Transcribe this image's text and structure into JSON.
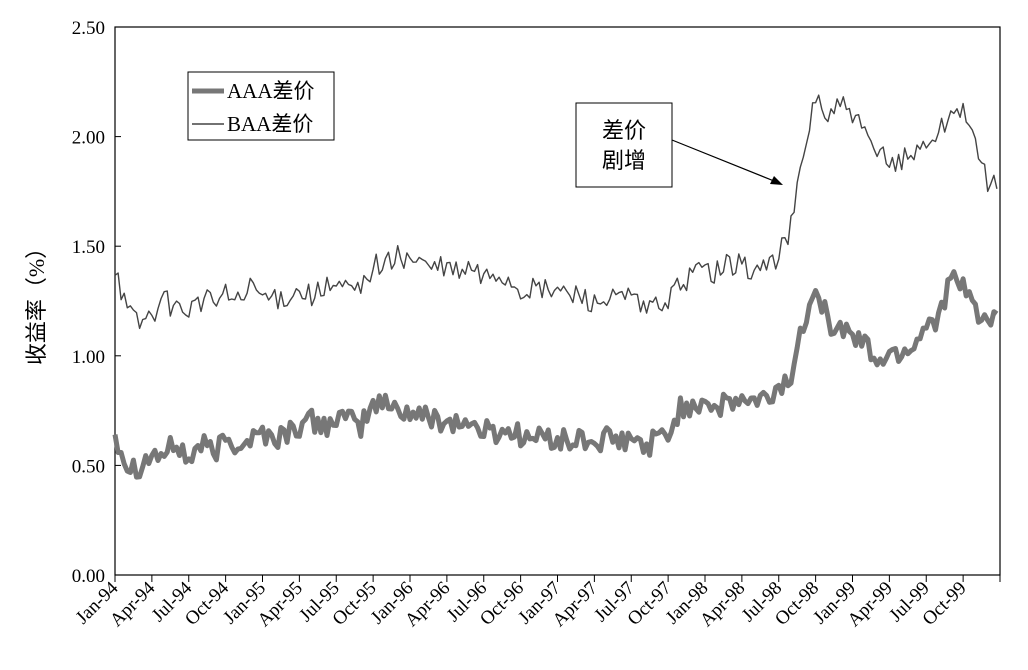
{
  "chart_data": {
    "type": "line",
    "title": "",
    "xlabel": "",
    "ylabel": "收益率（%）",
    "ylim": [
      0,
      2.5
    ],
    "yticks": [
      "0.00",
      "0.50",
      "1.00",
      "1.50",
      "2.00",
      "2.50"
    ],
    "x_tick_labels": [
      "Jan-94",
      "Apr-94",
      "Jul-94",
      "Oct-94",
      "Jan-95",
      "Apr-95",
      "Jul-95",
      "Oct-95",
      "Jan-96",
      "Apr-96",
      "Jul-96",
      "Oct-96",
      "Jan-97",
      "Apr-97",
      "Jul-97",
      "Oct-97",
      "Jan-98",
      "Apr-98",
      "Jul-98",
      "Oct-98",
      "Jan-99",
      "Apr-99",
      "Jul-99",
      "Oct-99"
    ],
    "grid": false,
    "legend": {
      "placement": "top-left"
    },
    "series": [
      {
        "name": "AAA差价",
        "style": "thick",
        "color": "#777777",
        "x": [
          "Jan-94",
          "Feb-94",
          "Mar-94",
          "Apr-94",
          "May-94",
          "Jun-94",
          "Jul-94",
          "Aug-94",
          "Sep-94",
          "Oct-94",
          "Nov-94",
          "Dec-94",
          "Jan-95",
          "Feb-95",
          "Mar-95",
          "Apr-95",
          "May-95",
          "Jun-95",
          "Jul-95",
          "Aug-95",
          "Sep-95",
          "Oct-95",
          "Nov-95",
          "Dec-95",
          "Jan-96",
          "Feb-96",
          "Mar-96",
          "Apr-96",
          "May-96",
          "Jun-96",
          "Jul-96",
          "Aug-96",
          "Sep-96",
          "Oct-96",
          "Nov-96",
          "Dec-96",
          "Jan-97",
          "Feb-97",
          "Mar-97",
          "Apr-97",
          "May-97",
          "Jun-97",
          "Jul-97",
          "Aug-97",
          "Sep-97",
          "Oct-97",
          "Nov-97",
          "Dec-97",
          "Jan-98",
          "Feb-98",
          "Mar-98",
          "Apr-98",
          "May-98",
          "Jun-98",
          "Jul-98",
          "Aug-98",
          "Sep-98",
          "Oct-98",
          "Nov-98",
          "Dec-98",
          "Jan-99",
          "Feb-99",
          "Mar-99",
          "Apr-99",
          "May-99",
          "Jun-99",
          "Jul-99",
          "Aug-99",
          "Sep-99",
          "Oct-99",
          "Nov-99",
          "Dec-99"
        ],
        "values": [
          0.65,
          0.5,
          0.5,
          0.55,
          0.55,
          0.6,
          0.52,
          0.6,
          0.55,
          0.62,
          0.6,
          0.62,
          0.65,
          0.62,
          0.65,
          0.68,
          0.7,
          0.68,
          0.72,
          0.7,
          0.68,
          0.78,
          0.78,
          0.76,
          0.74,
          0.72,
          0.72,
          0.7,
          0.7,
          0.68,
          0.66,
          0.65,
          0.66,
          0.64,
          0.62,
          0.63,
          0.62,
          0.6,
          0.62,
          0.6,
          0.62,
          0.6,
          0.62,
          0.58,
          0.62,
          0.64,
          0.76,
          0.78,
          0.8,
          0.76,
          0.78,
          0.8,
          0.78,
          0.8,
          0.85,
          0.9,
          1.15,
          1.35,
          1.15,
          1.12,
          1.1,
          1.05,
          0.98,
          1.0,
          1.02,
          1.05,
          1.15,
          1.18,
          1.35,
          1.3,
          1.22,
          1.15
        ]
      },
      {
        "name": "BAA差价",
        "style": "thin",
        "color": "#444444",
        "x": [
          "Jan-94",
          "Feb-94",
          "Mar-94",
          "Apr-94",
          "May-94",
          "Jun-94",
          "Jul-94",
          "Aug-94",
          "Sep-94",
          "Oct-94",
          "Nov-94",
          "Dec-94",
          "Jan-95",
          "Feb-95",
          "Mar-95",
          "Apr-95",
          "May-95",
          "Jun-95",
          "Jul-95",
          "Aug-95",
          "Sep-95",
          "Oct-95",
          "Nov-95",
          "Dec-95",
          "Jan-96",
          "Feb-96",
          "Mar-96",
          "Apr-96",
          "May-96",
          "Jun-96",
          "Jul-96",
          "Aug-96",
          "Sep-96",
          "Oct-96",
          "Nov-96",
          "Dec-96",
          "Jan-97",
          "Feb-97",
          "Mar-97",
          "Apr-97",
          "May-97",
          "Jun-97",
          "Jul-97",
          "Aug-97",
          "Sep-97",
          "Oct-97",
          "Nov-97",
          "Dec-97",
          "Jan-98",
          "Feb-98",
          "Mar-98",
          "Apr-98",
          "May-98",
          "Jun-98",
          "Jul-98",
          "Aug-98",
          "Sep-98",
          "Oct-98",
          "Nov-98",
          "Dec-98",
          "Jan-99",
          "Feb-99",
          "Mar-99",
          "Apr-99",
          "May-99",
          "Jun-99",
          "Jul-99",
          "Aug-99",
          "Sep-99",
          "Oct-99",
          "Nov-99",
          "Dec-99"
        ],
        "values": [
          1.42,
          1.2,
          1.15,
          1.2,
          1.25,
          1.22,
          1.22,
          1.25,
          1.25,
          1.28,
          1.25,
          1.3,
          1.28,
          1.25,
          1.28,
          1.3,
          1.28,
          1.3,
          1.32,
          1.3,
          1.3,
          1.42,
          1.42,
          1.45,
          1.45,
          1.42,
          1.4,
          1.4,
          1.38,
          1.4,
          1.35,
          1.38,
          1.35,
          1.3,
          1.3,
          1.3,
          1.3,
          1.28,
          1.28,
          1.24,
          1.26,
          1.25,
          1.28,
          1.2,
          1.24,
          1.25,
          1.32,
          1.38,
          1.4,
          1.38,
          1.42,
          1.42,
          1.38,
          1.42,
          1.45,
          1.6,
          1.9,
          2.2,
          2.08,
          2.15,
          2.1,
          2.0,
          1.92,
          1.88,
          1.9,
          1.92,
          1.98,
          2.02,
          2.1,
          2.15,
          1.95,
          1.78
        ]
      }
    ],
    "annotation": {
      "lines": [
        "差价",
        "剧增"
      ]
    }
  }
}
